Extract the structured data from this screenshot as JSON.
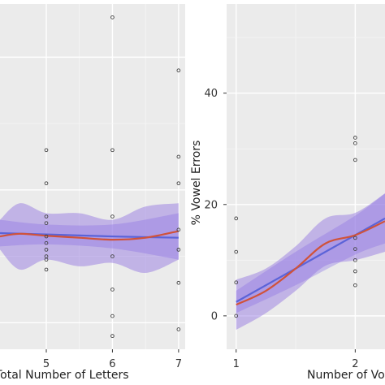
{
  "chart_data": [
    {
      "type": "line",
      "panel": "left",
      "title": "",
      "xlabel": "Total Number of Letters",
      "ylabel": "",
      "x_ticks": [
        5,
        6,
        7
      ],
      "y_ticks": [],
      "xlim": [
        4.3,
        7.1
      ],
      "ylim": [
        -4,
        48
      ],
      "grid": true,
      "legend": "none",
      "points": [
        {
          "x": 5,
          "y": 26
        },
        {
          "x": 5,
          "y": 21
        },
        {
          "x": 5,
          "y": 16
        },
        {
          "x": 5,
          "y": 15
        },
        {
          "x": 5,
          "y": 13
        },
        {
          "x": 5,
          "y": 12
        },
        {
          "x": 5,
          "y": 11
        },
        {
          "x": 5,
          "y": 10
        },
        {
          "x": 5,
          "y": 9.5
        },
        {
          "x": 5,
          "y": 8
        },
        {
          "x": 6,
          "y": 46
        },
        {
          "x": 6,
          "y": 26
        },
        {
          "x": 6,
          "y": 16
        },
        {
          "x": 6,
          "y": 10
        },
        {
          "x": 6,
          "y": 5
        },
        {
          "x": 6,
          "y": 1
        },
        {
          "x": 6,
          "y": -2
        },
        {
          "x": 7,
          "y": 38
        },
        {
          "x": 7,
          "y": 25
        },
        {
          "x": 7,
          "y": 21
        },
        {
          "x": 7,
          "y": 14
        },
        {
          "x": 7,
          "y": 11
        },
        {
          "x": 7,
          "y": 6
        },
        {
          "x": 7,
          "y": -1
        }
      ],
      "series": [
        {
          "color": "#5b63d8",
          "x": [
            4.3,
            5,
            6,
            7
          ],
          "values": [
            13.5,
            13.3,
            13.0,
            12.8
          ],
          "band_low": [
            11.5,
            11.8,
            11.2,
            9.5
          ],
          "band_high": [
            15.5,
            14.8,
            14.8,
            16.5
          ]
        },
        {
          "color": "#d0523a",
          "x": [
            4.3,
            4.6,
            5,
            5.5,
            6,
            6.5,
            7
          ],
          "values": [
            13.0,
            13.4,
            13.1,
            12.8,
            12.5,
            12.8,
            13.8
          ],
          "band_low": [
            11.0,
            8.0,
            9.5,
            8.5,
            9.0,
            7.5,
            9.5
          ],
          "band_high": [
            15.5,
            18.0,
            16.5,
            16.5,
            15.5,
            17.5,
            18.0
          ]
        }
      ]
    },
    {
      "type": "line",
      "panel": "right",
      "title": "",
      "xlabel": "Number of Vo",
      "ylabel": "% Vowel Errors",
      "x_ticks": [
        1,
        2
      ],
      "y_ticks": [
        0,
        20,
        40
      ],
      "xlim": [
        0.92,
        2.25
      ],
      "ylim": [
        -6,
        56
      ],
      "grid": true,
      "legend": "none",
      "points": [
        {
          "x": 1,
          "y": 17.5
        },
        {
          "x": 1,
          "y": 11.5
        },
        {
          "x": 1,
          "y": 6
        },
        {
          "x": 1,
          "y": 0
        },
        {
          "x": 2,
          "y": 32
        },
        {
          "x": 2,
          "y": 31
        },
        {
          "x": 2,
          "y": 28
        },
        {
          "x": 2,
          "y": 14
        },
        {
          "x": 2,
          "y": 12
        },
        {
          "x": 2,
          "y": 10
        },
        {
          "x": 2,
          "y": 8
        },
        {
          "x": 2,
          "y": 5.5
        }
      ],
      "series": [
        {
          "color": "#5b63d8",
          "x": [
            1,
            1.5,
            2,
            2.25
          ],
          "values": [
            2.5,
            8.5,
            14.5,
            17.5
          ],
          "band_low": [
            0.5,
            5.5,
            11.0,
            13.0
          ],
          "band_high": [
            4.5,
            11.5,
            18.0,
            22.0
          ]
        },
        {
          "color": "#d0523a",
          "x": [
            1,
            1.25,
            1.5,
            1.75,
            2,
            2.25
          ],
          "values": [
            2.0,
            4.5,
            8.5,
            13.0,
            14.5,
            17.0
          ],
          "band_low": [
            -2.5,
            0.5,
            4.5,
            9.0,
            10.0,
            11.5
          ],
          "band_high": [
            6.5,
            8.5,
            12.5,
            17.5,
            18.5,
            22.0
          ]
        }
      ]
    }
  ]
}
